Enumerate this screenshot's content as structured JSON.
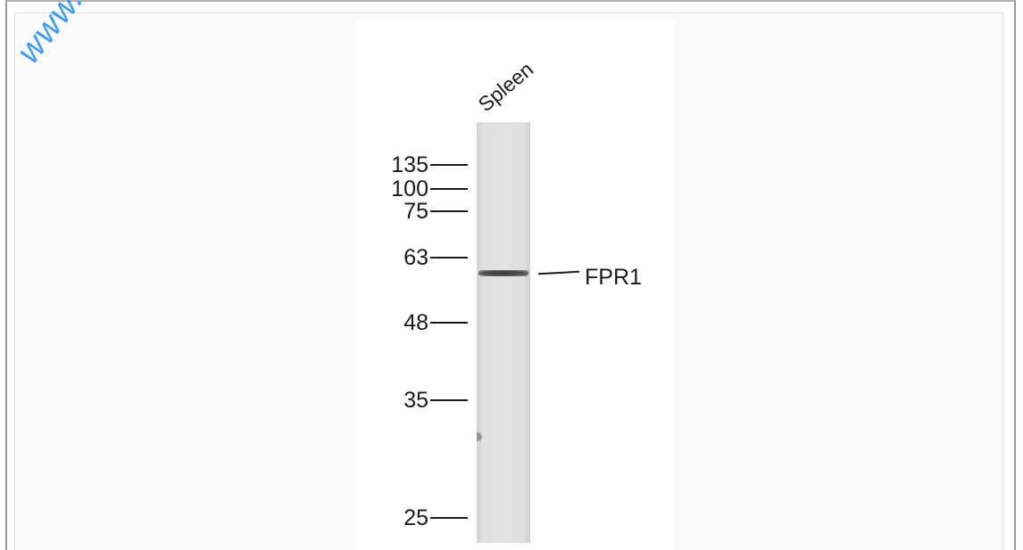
{
  "watermark": "www.",
  "figure": {
    "lane_label": "Spleen",
    "markers": [
      "135",
      "100",
      "75",
      "63",
      "48",
      "35",
      "25"
    ],
    "band_label": "FPR1"
  }
}
